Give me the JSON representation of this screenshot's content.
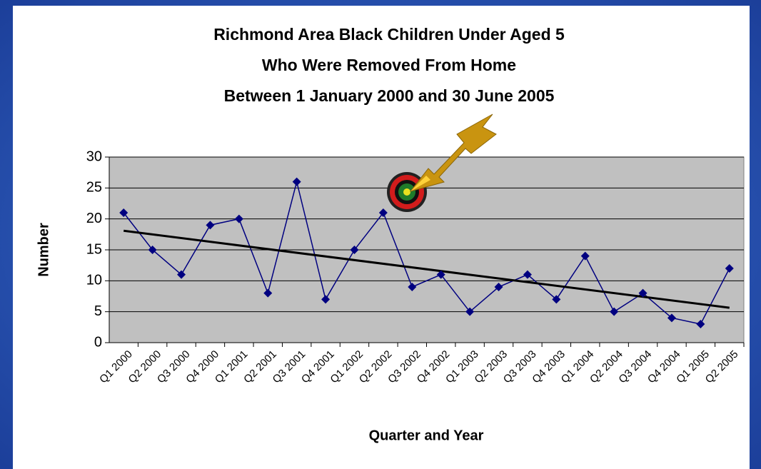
{
  "chart_data": {
    "type": "line",
    "title": [
      "Richmond Area Black Children Under Aged 5",
      "Who Were Removed From Home",
      "Between 1 January 2000 and 30 June 2005"
    ],
    "x_label": "Quarter and Year",
    "y_label": "Number",
    "categories": [
      "Q1 2000",
      "Q2 2000",
      "Q3 2000",
      "Q4 2000",
      "Q1 2001",
      "Q2 2001",
      "Q3 2001",
      "Q4 2001",
      "Q1 2002",
      "Q2 2002",
      "Q3 2002",
      "Q4 2002",
      "Q1 2003",
      "Q2 2003",
      "Q3 2003",
      "Q4 2003",
      "Q1 2004",
      "Q2 2004",
      "Q3 2004",
      "Q4 2004",
      "Q1 2005",
      "Q2 2005"
    ],
    "series": [
      {
        "color": "#000080",
        "values": [
          21,
          15,
          11,
          19,
          20,
          8,
          26,
          7,
          15,
          21,
          9,
          11,
          5,
          9,
          11,
          7,
          14,
          5,
          8,
          4,
          3,
          12
        ]
      }
    ],
    "trendline": true,
    "trendline_color": "#000000",
    "ylim": [
      0,
      30
    ],
    "yticks": [
      0,
      5,
      10,
      15,
      20,
      25,
      30
    ],
    "grid": true,
    "plot_background": "#c0c0c0"
  }
}
